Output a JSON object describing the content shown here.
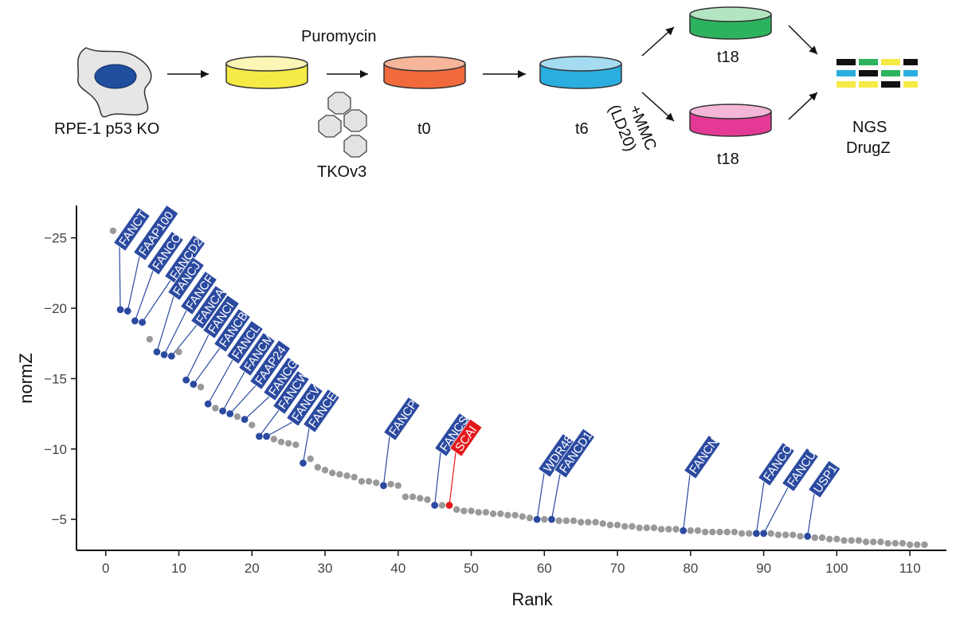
{
  "workflow": {
    "cell_label": "RPE-1 p53 KO",
    "selection_label": "Puromycin",
    "library_label": "TKOv3",
    "t0_label": "t0",
    "t6_label": "t6",
    "t18_top_label": "t18",
    "t18_bottom_label": "t18",
    "treatment_line1": "+MMC",
    "treatment_line2": "(LD20)",
    "readout_line1": "NGS",
    "readout_line2": "DrugZ",
    "colors": {
      "cell": "#e6e6e6",
      "nucleus": "#1f4e9e",
      "yellow": "#f5ea46",
      "orange": "#f06a3c",
      "blue": "#2aaee0",
      "green": "#2db35e",
      "pink": "#e43a96"
    }
  },
  "chart_data": {
    "type": "scatter",
    "xlabel": "Rank",
    "ylabel": "normZ",
    "xlim": [
      -4,
      115
    ],
    "ylim": [
      -2.8,
      -27.3
    ],
    "xticks": [
      0,
      10,
      20,
      30,
      40,
      50,
      60,
      70,
      80,
      90,
      100,
      110
    ],
    "yticks": [
      -25,
      -20,
      -15,
      -10,
      -5
    ],
    "ytick_labels": [
      "−25",
      "−20",
      "−15",
      "−10",
      "−5"
    ],
    "grid": false,
    "colors": {
      "background": "#999999",
      "highlight": "#2b4aa0",
      "hit": "#e3191c"
    },
    "x": [
      1,
      2,
      3,
      4,
      5,
      6,
      7,
      8,
      9,
      10,
      11,
      12,
      13,
      14,
      15,
      16,
      17,
      18,
      19,
      20,
      21,
      22,
      23,
      24,
      25,
      26,
      27,
      28,
      29,
      30,
      31,
      32,
      33,
      34,
      35,
      36,
      37,
      38,
      39,
      40,
      41,
      42,
      43,
      44,
      45,
      46,
      47,
      48,
      49,
      50,
      51,
      52,
      53,
      54,
      55,
      56,
      57,
      58,
      59,
      60,
      61,
      62,
      63,
      64,
      65,
      66,
      67,
      68,
      69,
      70,
      71,
      72,
      73,
      74,
      75,
      76,
      77,
      78,
      79,
      80,
      81,
      82,
      83,
      84,
      85,
      86,
      87,
      88,
      89,
      90,
      91,
      92,
      93,
      94,
      95,
      96,
      97,
      98,
      99,
      100,
      101,
      102,
      103,
      104,
      105,
      106,
      107,
      108,
      109,
      110,
      111,
      112
    ],
    "values": [
      -25.5,
      -19.9,
      -19.8,
      -19.1,
      -19.0,
      -17.8,
      -16.9,
      -16.7,
      -16.6,
      -16.9,
      -14.9,
      -14.6,
      -14.4,
      -13.2,
      -12.9,
      -12.7,
      -12.5,
      -12.3,
      -12.1,
      -11.7,
      -10.9,
      -10.9,
      -10.7,
      -10.5,
      -10.4,
      -10.3,
      -9.0,
      -9.3,
      -8.7,
      -8.5,
      -8.3,
      -8.2,
      -8.1,
      -8.0,
      -7.7,
      -7.7,
      -7.6,
      -7.4,
      -7.5,
      -7.4,
      -6.6,
      -6.6,
      -6.5,
      -6.4,
      -6.0,
      -6.0,
      -6.0,
      -5.7,
      -5.6,
      -5.6,
      -5.5,
      -5.5,
      -5.4,
      -5.4,
      -5.3,
      -5.3,
      -5.2,
      -5.1,
      -5.0,
      -5.0,
      -5.0,
      -4.9,
      -4.9,
      -4.9,
      -4.8,
      -4.8,
      -4.8,
      -4.7,
      -4.6,
      -4.6,
      -4.5,
      -4.5,
      -4.4,
      -4.4,
      -4.4,
      -4.3,
      -4.3,
      -4.3,
      -4.2,
      -4.2,
      -4.2,
      -4.1,
      -4.1,
      -4.1,
      -4.1,
      -4.1,
      -4.0,
      -4.0,
      -4.0,
      -4.0,
      -4.0,
      -3.9,
      -3.9,
      -3.9,
      -3.8,
      -3.8,
      -3.7,
      -3.7,
      -3.6,
      -3.6,
      -3.5,
      -3.5,
      -3.5,
      -3.4,
      -3.4,
      -3.4,
      -3.3,
      -3.3,
      -3.3,
      -3.2,
      -3.2,
      -3.2
    ],
    "highlighted": [
      {
        "gene": "FANCT",
        "x": 2,
        "y": -19.9
      },
      {
        "gene": "FAAP100",
        "x": 3,
        "y": -19.8
      },
      {
        "gene": "FANCC",
        "x": 4,
        "y": -19.1
      },
      {
        "gene": "FANCD2",
        "x": 5,
        "y": -19.0
      },
      {
        "gene": "FANCJ",
        "x": 7,
        "y": -16.9
      },
      {
        "gene": "FANCF",
        "x": 8,
        "y": -16.7
      },
      {
        "gene": "FANCA",
        "x": 9,
        "y": -16.6
      },
      {
        "gene": "FANCI",
        "x": 11,
        "y": -14.9
      },
      {
        "gene": "FANCB",
        "x": 12,
        "y": -14.6
      },
      {
        "gene": "FANCL",
        "x": 14,
        "y": -13.2
      },
      {
        "gene": "FANCM",
        "x": 16,
        "y": -12.7
      },
      {
        "gene": "FAAP24",
        "x": 17,
        "y": -12.5
      },
      {
        "gene": "FANCG",
        "x": 19,
        "y": -12.1
      },
      {
        "gene": "FANCW",
        "x": 21,
        "y": -10.9
      },
      {
        "gene": "FANCV",
        "x": 22,
        "y": -10.9
      },
      {
        "gene": "FANCE",
        "x": 27,
        "y": -9.0
      },
      {
        "gene": "FANCP",
        "x": 38,
        "y": -7.4
      },
      {
        "gene": "FANCS",
        "x": 45,
        "y": -6.0
      },
      {
        "gene": "WDR48",
        "x": 59,
        "y": -5.0
      },
      {
        "gene": "FANCD1",
        "x": 61,
        "y": -5.0
      },
      {
        "gene": "FANCN",
        "x": 79,
        "y": -4.2
      },
      {
        "gene": "FANCO",
        "x": 89,
        "y": -4.0
      },
      {
        "gene": "FANCU",
        "x": 90,
        "y": -4.0
      },
      {
        "gene": "USP1",
        "x": 96,
        "y": -3.8
      }
    ],
    "hit": {
      "gene": "SCAI",
      "x": 47,
      "y": -6.0
    }
  }
}
